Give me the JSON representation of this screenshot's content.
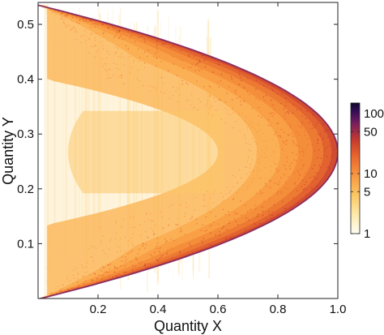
{
  "chart_data": {
    "type": "heatmap",
    "title": "",
    "xlabel": "Quantity X",
    "ylabel": "Quantity Y",
    "xlim": [
      0,
      1.0
    ],
    "ylim": [
      0,
      0.54
    ],
    "x_ticks": [
      {
        "value": 0.2,
        "label": "0.2"
      },
      {
        "value": 0.4,
        "label": "0.4"
      },
      {
        "value": 0.6,
        "label": "0.6"
      },
      {
        "value": 0.8,
        "label": "0.8"
      },
      {
        "value": 1.0,
        "label": "1.0"
      }
    ],
    "y_ticks": [
      {
        "value": 0.1,
        "label": "0.1"
      },
      {
        "value": 0.2,
        "label": "0.2"
      },
      {
        "value": 0.3,
        "label": "0.3"
      },
      {
        "value": 0.4,
        "label": "0.4"
      },
      {
        "value": 0.5,
        "label": "0.5"
      }
    ],
    "grid": false,
    "description": "Density of points forming a parabola-like envelope: outer boundary x = 1 - ((y - 0.27)/0.27)^2; inner lobe boundary x = 0.6 - ((y - 0.27)/0.17)^2 for |y-0.27|>0.04; counts highest near outer edge",
    "envelope": {
      "vertex_x": 1.0,
      "vertex_y": 0.267,
      "half_height": 0.268
    },
    "inner_lobe": {
      "vertex_x": 0.6,
      "vertex_y": 0.267,
      "half_height": 0.175
    },
    "colorbar": {
      "scale": "log",
      "range": [
        1,
        150
      ],
      "ticks": [
        {
          "value": 1,
          "label": "1"
        },
        {
          "value": 5,
          "label": "5"
        },
        {
          "value": 10,
          "label": "10"
        },
        {
          "value": 50,
          "label": "50"
        },
        {
          "value": 100,
          "label": "100"
        }
      ],
      "colors": [
        "#fffdf2",
        "#fde9a8",
        "#fbc561",
        "#f89540",
        "#e8632c",
        "#c4392f",
        "#7b1f5e",
        "#3a0d5c",
        "#0d0829"
      ]
    }
  }
}
